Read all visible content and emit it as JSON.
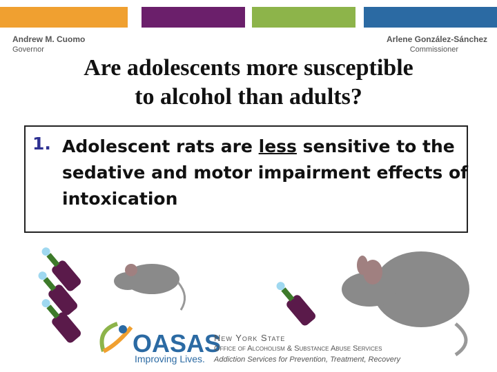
{
  "header": {
    "left_name": "Andrew M. Cuomo",
    "left_role": "Governor",
    "right_name": "Arlene González-Sánchez",
    "right_role": "Commissioner"
  },
  "title": {
    "lines": [
      "Are adolescents more susceptible",
      "to alcohol than adults?"
    ]
  },
  "list": {
    "items": [
      {
        "number": "1.",
        "parts": [
          "Adolescent rats are ",
          "less",
          " sensitive to the sedative and motor impairment effects of intoxication"
        ]
      }
    ]
  },
  "footer": {
    "logo": "OASAS",
    "tagline": "Improving Lives.",
    "agency_state": "New York State",
    "agency_name": "Office of Alcoholism & Substance Abuse Services",
    "agency_mission": "Addiction Services for Prevention, Treatment, Recovery"
  }
}
